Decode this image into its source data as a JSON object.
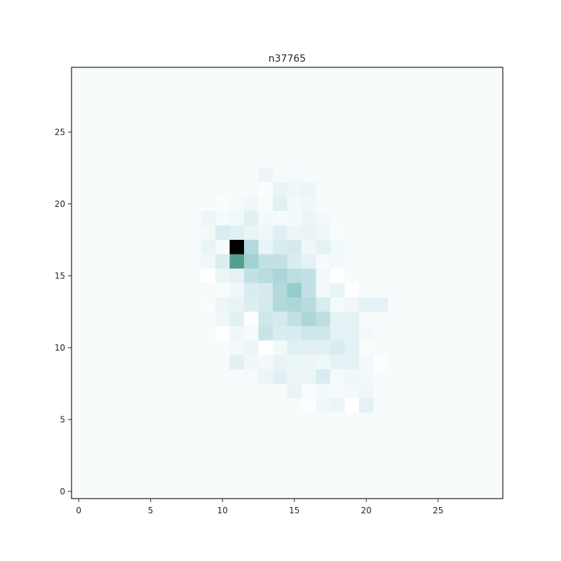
{
  "chart_data": {
    "type": "heatmap",
    "title": "n37765",
    "xlabel": "",
    "ylabel": "",
    "x_range": [
      -0.5,
      29.5
    ],
    "y_range": [
      -0.5,
      29.5
    ],
    "x_ticks": [
      0,
      5,
      10,
      15,
      20,
      25
    ],
    "y_ticks": [
      0,
      5,
      10,
      15,
      20,
      25
    ],
    "grid": false,
    "grid_size": [
      30,
      30
    ],
    "background_value": 0.05,
    "colormap": [
      "#ffffff",
      "#e8f4f6",
      "#cde6ea",
      "#a4d3d4",
      "#7cbfba",
      "#4f9a88",
      "#2a6b55",
      "#000000"
    ],
    "cells": [
      {
        "x": 13,
        "y": 22,
        "v": 0.12
      },
      {
        "x": 14,
        "y": 22,
        "v": 0.06
      },
      {
        "x": 15,
        "y": 22,
        "v": 0.07
      },
      {
        "x": 13,
        "y": 21,
        "v": 0.03
      },
      {
        "x": 14,
        "y": 21,
        "v": 0.14
      },
      {
        "x": 15,
        "y": 21,
        "v": 0.1
      },
      {
        "x": 16,
        "y": 21,
        "v": 0.12
      },
      {
        "x": 10,
        "y": 20,
        "v": 0.03
      },
      {
        "x": 11,
        "y": 20,
        "v": 0.06
      },
      {
        "x": 12,
        "y": 20,
        "v": 0.1
      },
      {
        "x": 13,
        "y": 20,
        "v": 0.04
      },
      {
        "x": 14,
        "y": 20,
        "v": 0.18
      },
      {
        "x": 15,
        "y": 20,
        "v": 0.08
      },
      {
        "x": 16,
        "y": 20,
        "v": 0.1
      },
      {
        "x": 9,
        "y": 19,
        "v": 0.12
      },
      {
        "x": 10,
        "y": 19,
        "v": 0.06
      },
      {
        "x": 11,
        "y": 19,
        "v": 0.08
      },
      {
        "x": 12,
        "y": 19,
        "v": 0.18
      },
      {
        "x": 13,
        "y": 19,
        "v": 0.07
      },
      {
        "x": 14,
        "y": 19,
        "v": 0.06
      },
      {
        "x": 15,
        "y": 19,
        "v": 0.07
      },
      {
        "x": 16,
        "y": 19,
        "v": 0.12
      },
      {
        "x": 17,
        "y": 19,
        "v": 0.08
      },
      {
        "x": 9,
        "y": 18,
        "v": 0.08
      },
      {
        "x": 10,
        "y": 18,
        "v": 0.22
      },
      {
        "x": 11,
        "y": 18,
        "v": 0.18
      },
      {
        "x": 12,
        "y": 18,
        "v": 0.14
      },
      {
        "x": 13,
        "y": 18,
        "v": 0.1
      },
      {
        "x": 14,
        "y": 18,
        "v": 0.18
      },
      {
        "x": 15,
        "y": 18,
        "v": 0.12
      },
      {
        "x": 16,
        "y": 18,
        "v": 0.14
      },
      {
        "x": 17,
        "y": 18,
        "v": 0.1
      },
      {
        "x": 18,
        "y": 18,
        "v": 0.04
      },
      {
        "x": 9,
        "y": 17,
        "v": 0.14
      },
      {
        "x": 10,
        "y": 17,
        "v": 0.06
      },
      {
        "x": 11,
        "y": 17,
        "v": 1.0
      },
      {
        "x": 12,
        "y": 17,
        "v": 0.38
      },
      {
        "x": 13,
        "y": 17,
        "v": 0.14
      },
      {
        "x": 14,
        "y": 17,
        "v": 0.22
      },
      {
        "x": 15,
        "y": 17,
        "v": 0.24
      },
      {
        "x": 16,
        "y": 17,
        "v": 0.1
      },
      {
        "x": 17,
        "y": 17,
        "v": 0.16
      },
      {
        "x": 18,
        "y": 17,
        "v": 0.08
      },
      {
        "x": 19,
        "y": 17,
        "v": 0.06
      },
      {
        "x": 9,
        "y": 16,
        "v": 0.1
      },
      {
        "x": 10,
        "y": 16,
        "v": 0.2
      },
      {
        "x": 11,
        "y": 16,
        "v": 0.7
      },
      {
        "x": 12,
        "y": 16,
        "v": 0.44
      },
      {
        "x": 13,
        "y": 16,
        "v": 0.32
      },
      {
        "x": 14,
        "y": 16,
        "v": 0.32
      },
      {
        "x": 15,
        "y": 16,
        "v": 0.22
      },
      {
        "x": 16,
        "y": 16,
        "v": 0.16
      },
      {
        "x": 17,
        "y": 16,
        "v": 0.06
      },
      {
        "x": 18,
        "y": 16,
        "v": 0.08
      },
      {
        "x": 19,
        "y": 16,
        "v": 0.06
      },
      {
        "x": 9,
        "y": 15,
        "v": 0.0
      },
      {
        "x": 10,
        "y": 15,
        "v": 0.12
      },
      {
        "x": 11,
        "y": 15,
        "v": 0.16
      },
      {
        "x": 12,
        "y": 15,
        "v": 0.32
      },
      {
        "x": 13,
        "y": 15,
        "v": 0.36
      },
      {
        "x": 14,
        "y": 15,
        "v": 0.4
      },
      {
        "x": 15,
        "y": 15,
        "v": 0.34
      },
      {
        "x": 16,
        "y": 15,
        "v": 0.32
      },
      {
        "x": 17,
        "y": 15,
        "v": 0.08
      },
      {
        "x": 18,
        "y": 15,
        "v": 0.0
      },
      {
        "x": 19,
        "y": 15,
        "v": 0.05
      },
      {
        "x": 20,
        "y": 15,
        "v": 0.06
      },
      {
        "x": 9,
        "y": 14,
        "v": 0.06
      },
      {
        "x": 10,
        "y": 14,
        "v": 0.04
      },
      {
        "x": 11,
        "y": 14,
        "v": 0.1
      },
      {
        "x": 12,
        "y": 14,
        "v": 0.22
      },
      {
        "x": 13,
        "y": 14,
        "v": 0.24
      },
      {
        "x": 14,
        "y": 14,
        "v": 0.38
      },
      {
        "x": 15,
        "y": 14,
        "v": 0.48
      },
      {
        "x": 16,
        "y": 14,
        "v": 0.32
      },
      {
        "x": 17,
        "y": 14,
        "v": 0.08
      },
      {
        "x": 18,
        "y": 14,
        "v": 0.14
      },
      {
        "x": 19,
        "y": 14,
        "v": 0.0
      },
      {
        "x": 20,
        "y": 14,
        "v": 0.06
      },
      {
        "x": 9,
        "y": 13,
        "v": 0.04
      },
      {
        "x": 10,
        "y": 13,
        "v": 0.12
      },
      {
        "x": 11,
        "y": 13,
        "v": 0.14
      },
      {
        "x": 12,
        "y": 13,
        "v": 0.2
      },
      {
        "x": 13,
        "y": 13,
        "v": 0.24
      },
      {
        "x": 14,
        "y": 13,
        "v": 0.38
      },
      {
        "x": 15,
        "y": 13,
        "v": 0.4
      },
      {
        "x": 16,
        "y": 13,
        "v": 0.36
      },
      {
        "x": 17,
        "y": 13,
        "v": 0.22
      },
      {
        "x": 18,
        "y": 13,
        "v": 0.06
      },
      {
        "x": 19,
        "y": 13,
        "v": 0.1
      },
      {
        "x": 20,
        "y": 13,
        "v": 0.16
      },
      {
        "x": 21,
        "y": 13,
        "v": 0.16
      },
      {
        "x": 10,
        "y": 12,
        "v": 0.1
      },
      {
        "x": 11,
        "y": 12,
        "v": 0.18
      },
      {
        "x": 12,
        "y": 12,
        "v": 0.02
      },
      {
        "x": 13,
        "y": 12,
        "v": 0.28
      },
      {
        "x": 14,
        "y": 12,
        "v": 0.24
      },
      {
        "x": 15,
        "y": 12,
        "v": 0.32
      },
      {
        "x": 16,
        "y": 12,
        "v": 0.4
      },
      {
        "x": 17,
        "y": 12,
        "v": 0.34
      },
      {
        "x": 18,
        "y": 12,
        "v": 0.16
      },
      {
        "x": 19,
        "y": 12,
        "v": 0.16
      },
      {
        "x": 20,
        "y": 12,
        "v": 0.06
      },
      {
        "x": 21,
        "y": 12,
        "v": 0.06
      },
      {
        "x": 10,
        "y": 11,
        "v": 0.0
      },
      {
        "x": 11,
        "y": 11,
        "v": 0.1
      },
      {
        "x": 12,
        "y": 11,
        "v": 0.06
      },
      {
        "x": 13,
        "y": 11,
        "v": 0.3
      },
      {
        "x": 14,
        "y": 11,
        "v": 0.22
      },
      {
        "x": 15,
        "y": 11,
        "v": 0.22
      },
      {
        "x": 16,
        "y": 11,
        "v": 0.28
      },
      {
        "x": 17,
        "y": 11,
        "v": 0.28
      },
      {
        "x": 18,
        "y": 11,
        "v": 0.16
      },
      {
        "x": 19,
        "y": 11,
        "v": 0.16
      },
      {
        "x": 20,
        "y": 11,
        "v": 0.08
      },
      {
        "x": 21,
        "y": 11,
        "v": 0.06
      },
      {
        "x": 11,
        "y": 10,
        "v": 0.08
      },
      {
        "x": 12,
        "y": 10,
        "v": 0.12
      },
      {
        "x": 13,
        "y": 10,
        "v": 0.0
      },
      {
        "x": 14,
        "y": 10,
        "v": 0.08
      },
      {
        "x": 15,
        "y": 10,
        "v": 0.18
      },
      {
        "x": 16,
        "y": 10,
        "v": 0.18
      },
      {
        "x": 17,
        "y": 10,
        "v": 0.18
      },
      {
        "x": 18,
        "y": 10,
        "v": 0.22
      },
      {
        "x": 19,
        "y": 10,
        "v": 0.16
      },
      {
        "x": 20,
        "y": 10,
        "v": 0.04
      },
      {
        "x": 11,
        "y": 9,
        "v": 0.18
      },
      {
        "x": 12,
        "y": 9,
        "v": 0.1
      },
      {
        "x": 13,
        "y": 9,
        "v": 0.08
      },
      {
        "x": 14,
        "y": 9,
        "v": 0.14
      },
      {
        "x": 15,
        "y": 9,
        "v": 0.12
      },
      {
        "x": 16,
        "y": 9,
        "v": 0.12
      },
      {
        "x": 17,
        "y": 9,
        "v": 0.1
      },
      {
        "x": 18,
        "y": 9,
        "v": 0.16
      },
      {
        "x": 19,
        "y": 9,
        "v": 0.16
      },
      {
        "x": 20,
        "y": 9,
        "v": 0.08
      },
      {
        "x": 21,
        "y": 9,
        "v": 0.02
      },
      {
        "x": 12,
        "y": 8,
        "v": 0.06
      },
      {
        "x": 13,
        "y": 8,
        "v": 0.12
      },
      {
        "x": 14,
        "y": 8,
        "v": 0.18
      },
      {
        "x": 15,
        "y": 8,
        "v": 0.12
      },
      {
        "x": 16,
        "y": 8,
        "v": 0.12
      },
      {
        "x": 17,
        "y": 8,
        "v": 0.22
      },
      {
        "x": 18,
        "y": 8,
        "v": 0.06
      },
      {
        "x": 19,
        "y": 8,
        "v": 0.1
      },
      {
        "x": 20,
        "y": 8,
        "v": 0.08
      },
      {
        "x": 14,
        "y": 7,
        "v": 0.06
      },
      {
        "x": 15,
        "y": 7,
        "v": 0.14
      },
      {
        "x": 16,
        "y": 7,
        "v": 0.04
      },
      {
        "x": 17,
        "y": 7,
        "v": 0.08
      },
      {
        "x": 18,
        "y": 7,
        "v": 0.06
      },
      {
        "x": 19,
        "y": 7,
        "v": 0.08
      },
      {
        "x": 20,
        "y": 7,
        "v": 0.1
      },
      {
        "x": 16,
        "y": 6,
        "v": 0.02
      },
      {
        "x": 17,
        "y": 6,
        "v": 0.1
      },
      {
        "x": 18,
        "y": 6,
        "v": 0.12
      },
      {
        "x": 19,
        "y": 6,
        "v": 0.0
      },
      {
        "x": 20,
        "y": 6,
        "v": 0.16
      }
    ]
  }
}
